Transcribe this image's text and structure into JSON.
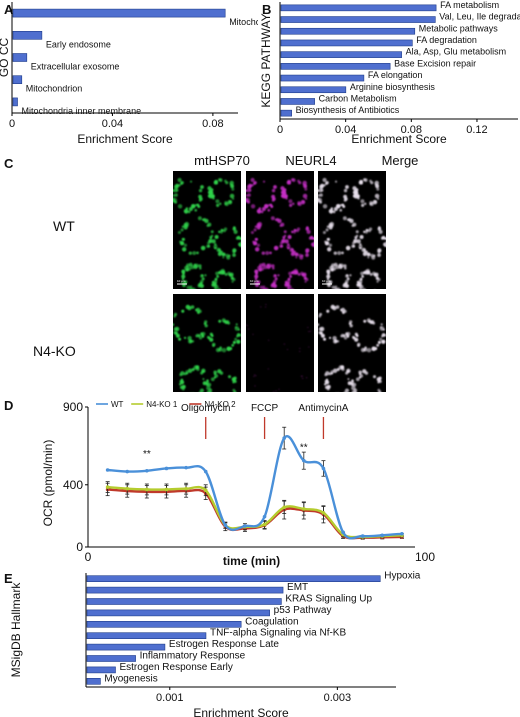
{
  "panels": {
    "A": {
      "label": "A"
    },
    "B": {
      "label": "B"
    },
    "C": {
      "label": "C"
    },
    "D": {
      "label": "D"
    },
    "E": {
      "label": "E"
    }
  },
  "micrographs": {
    "columns": [
      "mtHSP70",
      "NEURL4",
      "Merge"
    ],
    "rows": [
      "WT",
      "N4-KO"
    ],
    "channel_colors": [
      "#2fd34a",
      "#c62fc6",
      "#e8e0ec"
    ],
    "scale_bar_label": "10 μm"
  },
  "chart_data": [
    {
      "id": "A",
      "type": "bar",
      "orientation": "horizontal",
      "xlabel": "Enrichment Score",
      "ylabel": "GO CC",
      "xlim": [
        0,
        0.09
      ],
      "xticks": [
        0,
        0.04,
        0.08
      ],
      "tick_labels": [
        "0",
        "0.04",
        "0.08"
      ],
      "bar_color": "#4f6fcf",
      "categories": [
        "Mitochondria matrix",
        "Early endosome",
        "Extracellular exosome",
        "Mitochondrion",
        "Mitochondria inner membrane"
      ],
      "values": [
        0.0845,
        0.0115,
        0.0055,
        0.0035,
        0.0018
      ]
    },
    {
      "id": "B",
      "type": "bar",
      "orientation": "horizontal",
      "xlabel": "Enrichment Score",
      "ylabel": "KEGG PATHWAY",
      "xlim": [
        0,
        0.145
      ],
      "xticks": [
        0,
        0.04,
        0.08,
        0.12
      ],
      "tick_labels": [
        "0",
        "0.04",
        "0.08",
        "0.12"
      ],
      "bar_color": "#4f6fcf",
      "categories": [
        "FA metabolism",
        "Val, Leu, Ile degradation",
        "Metabolic pathways",
        "FA degradation",
        "Ala, Asp, Glu metabolism",
        "Base Excision repair",
        "FA elongation",
        "Arginine biosynthesis",
        "Carbon Metabolism",
        "Biosynthesis of Antibiotics"
      ],
      "values": [
        0.0945,
        0.094,
        0.0815,
        0.08,
        0.0735,
        0.0665,
        0.0505,
        0.0395,
        0.0205,
        0.0065
      ]
    },
    {
      "id": "D",
      "type": "line",
      "xlabel": "time (min)",
      "ylabel": "OCR (pmol/min)",
      "xlim": [
        0,
        100
      ],
      "ylim": [
        0,
        900
      ],
      "yticks": [
        0,
        400,
        900
      ],
      "xticks": [
        0,
        100
      ],
      "tick_labels_y": [
        "0",
        "400",
        "900"
      ],
      "tick_labels_x": [
        "0",
        "100"
      ],
      "x": [
        6,
        12,
        18,
        24,
        30,
        36,
        42,
        48,
        54,
        60,
        66,
        72,
        78,
        84,
        90,
        96
      ],
      "series": [
        {
          "name": "WT",
          "color": "#4a90d9",
          "values": [
            495,
            485,
            490,
            505,
            510,
            485,
            140,
            135,
            195,
            700,
            555,
            505,
            95,
            70,
            75,
            85
          ],
          "errors": [
            0,
            0,
            0,
            0,
            0,
            0,
            0,
            0,
            0,
            70,
            55,
            50,
            0,
            0,
            0,
            0
          ]
        },
        {
          "name": "N4-KO 1",
          "color": "#b5cc2e",
          "values": [
            385,
            375,
            370,
            370,
            375,
            365,
            140,
            130,
            145,
            255,
            245,
            220,
            80,
            65,
            70,
            75
          ],
          "errors": [
            35,
            35,
            35,
            35,
            35,
            35,
            20,
            20,
            25,
            40,
            40,
            40,
            15,
            10,
            10,
            10
          ]
        },
        {
          "name": "N4-KO 2",
          "color": "#c0392b",
          "values": [
            370,
            360,
            355,
            355,
            360,
            345,
            130,
            120,
            140,
            240,
            235,
            210,
            70,
            60,
            62,
            65
          ],
          "errors": [
            40,
            40,
            40,
            40,
            40,
            40,
            25,
            20,
            25,
            60,
            55,
            55,
            15,
            10,
            10,
            10
          ]
        }
      ],
      "annotations": [
        {
          "text": "Oligomycin",
          "x": 36
        },
        {
          "text": "FCCP",
          "x": 54
        },
        {
          "text": "AntimycinA",
          "x": 72
        },
        {
          "text": "**",
          "x": 18,
          "y": 580
        },
        {
          "text": "**",
          "x": 66,
          "y": 620
        }
      ],
      "legend": "top-left"
    },
    {
      "id": "E",
      "type": "bar",
      "orientation": "horizontal",
      "xlabel": "Enrichment Score",
      "ylabel": "MSigDB Hallmark",
      "xlim": [
        0,
        0.0037
      ],
      "xticks": [
        0.001,
        0.003
      ],
      "tick_labels": [
        "0.001",
        "0.003"
      ],
      "bar_color": "#4f6fcf",
      "categories": [
        "Hypoxia",
        "EMT",
        "KRAS Signaling Up",
        "p53 Pathway",
        "Coagulation",
        "TNF-alpha Signaling via Nf-KB",
        "Estrogen Response Late",
        "Inflammatory Response",
        "Estrogen Response Early",
        "Myogenesis"
      ],
      "values": [
        0.0035,
        0.00234,
        0.00232,
        0.00218,
        0.00184,
        0.00142,
        0.00093,
        0.00058,
        0.00034,
        0.00016
      ]
    }
  ]
}
